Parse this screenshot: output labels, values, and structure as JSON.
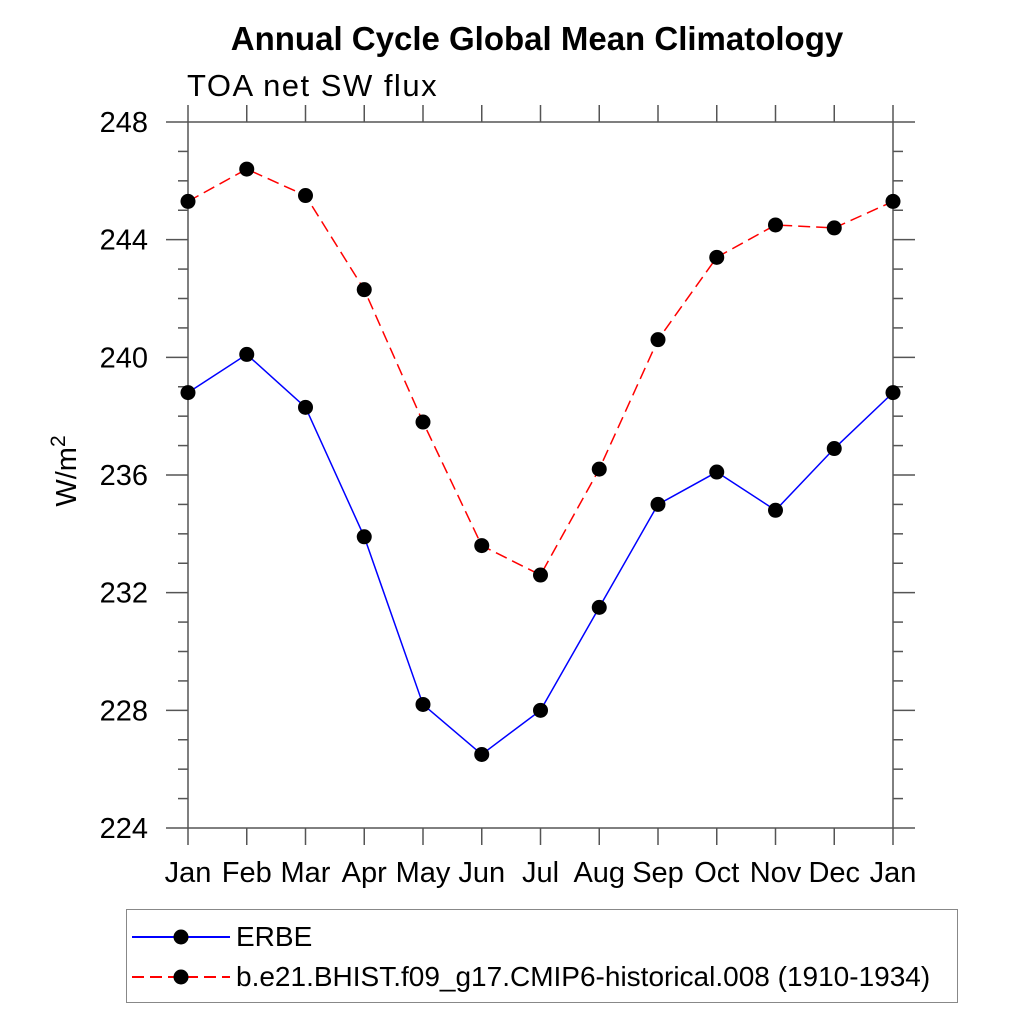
{
  "figure": {
    "title": "Annual Cycle Global Mean Climatology",
    "subtitle": "TOA net SW flux"
  },
  "chart_data": {
    "type": "line",
    "title": "Annual Cycle Global Mean Climatology",
    "subtitle": "TOA net SW flux",
    "xlabel": "",
    "ylabel": "W/m^2",
    "ylabel_base": "W/m",
    "ylabel_sup": "2",
    "categories": [
      "Jan",
      "Feb",
      "Mar",
      "Apr",
      "May",
      "Jun",
      "Jul",
      "Aug",
      "Sep",
      "Oct",
      "Nov",
      "Dec",
      "Jan"
    ],
    "ylim": [
      224,
      248
    ],
    "ytick_major_step": 4,
    "ytick_minor_step": 1,
    "grid": false,
    "legend_position": "bottom-left-box",
    "series": [
      {
        "name": "ERBE",
        "color": "#0000ff",
        "line_style": "solid",
        "marker": "filled-circle",
        "marker_color": "#000000",
        "values": [
          238.8,
          240.1,
          238.3,
          233.9,
          228.2,
          226.5,
          228.0,
          231.5,
          235.0,
          236.1,
          234.8,
          236.9,
          238.8
        ]
      },
      {
        "name": "b.e21.BHIST.f09_g17.CMIP6-historical.008 (1910-1934)",
        "color": "#ff0000",
        "line_style": "dashed",
        "marker": "filled-circle",
        "marker_color": "#000000",
        "values": [
          245.3,
          246.4,
          245.5,
          242.3,
          237.8,
          233.6,
          232.6,
          236.2,
          240.6,
          243.4,
          244.5,
          244.4,
          245.3
        ]
      }
    ]
  },
  "colors": {
    "axis": "#555555",
    "text": "#000000",
    "legend_border": "#888888",
    "background": "#ffffff"
  }
}
